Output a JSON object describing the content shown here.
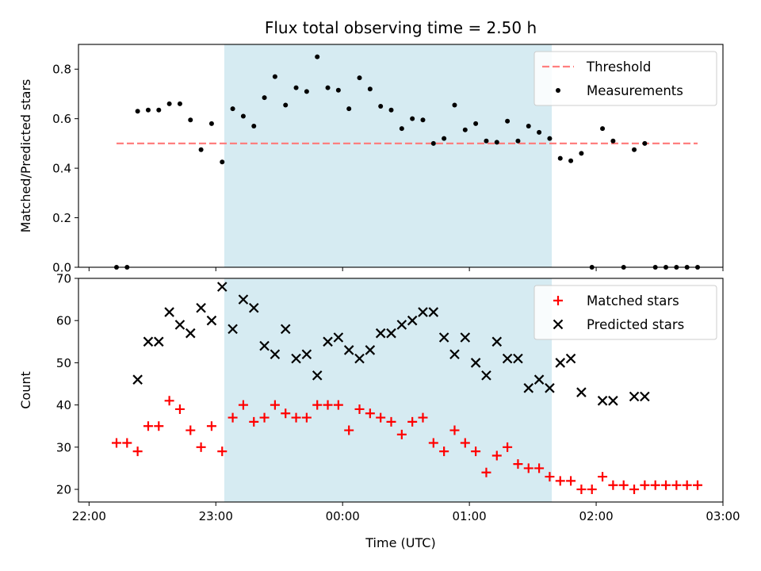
{
  "chart_data": [
    {
      "type": "scatter",
      "title": "Flux total observing time = 2.50 h",
      "ylabel": "Matched/Predicted stars",
      "ylim": [
        0,
        0.9
      ],
      "yticks": [
        0.0,
        0.2,
        0.4,
        0.6,
        0.8
      ],
      "ytick_labels": [
        "0.0",
        "0.2",
        "0.4",
        "0.6",
        "0.8"
      ],
      "xlim": [
        "21:55",
        "03:00"
      ],
      "shaded_span": [
        "23:04",
        "01:39"
      ],
      "threshold": {
        "name": "Threshold",
        "value": 0.5,
        "x_range": [
          "22:13",
          "02:48"
        ],
        "color": "#ff7f7f"
      },
      "legend_position": "top-right",
      "series": [
        {
          "name": "Measurements",
          "color": "#000000",
          "x": [
            "22:13",
            "22:18",
            "22:23",
            "22:28",
            "22:33",
            "22:38",
            "22:43",
            "22:48",
            "22:53",
            "22:58",
            "23:03",
            "23:08",
            "23:13",
            "23:18",
            "23:23",
            "23:28",
            "23:33",
            "23:38",
            "23:43",
            "23:48",
            "23:53",
            "23:58",
            "00:03",
            "00:08",
            "00:13",
            "00:18",
            "00:23",
            "00:28",
            "00:33",
            "00:38",
            "00:43",
            "00:48",
            "00:53",
            "00:58",
            "01:03",
            "01:08",
            "01:13",
            "01:18",
            "01:23",
            "01:28",
            "01:33",
            "01:38",
            "01:43",
            "01:48",
            "01:53",
            "01:58",
            "02:03",
            "02:08",
            "02:13",
            "02:18",
            "02:23",
            "02:28",
            "02:33",
            "02:38",
            "02:43",
            "02:48"
          ],
          "y": [
            0.0,
            0.0,
            0.63,
            0.635,
            0.635,
            0.66,
            0.66,
            0.595,
            0.475,
            0.58,
            0.425,
            0.64,
            0.61,
            0.57,
            0.685,
            0.77,
            0.655,
            0.725,
            0.71,
            0.85,
            0.725,
            0.715,
            0.64,
            0.765,
            0.72,
            0.65,
            0.635,
            0.56,
            0.6,
            0.595,
            0.5,
            0.52,
            0.655,
            0.555,
            0.58,
            0.51,
            0.505,
            0.59,
            0.51,
            0.57,
            0.545,
            0.52,
            0.44,
            0.43,
            0.46,
            0.0,
            0.56,
            0.51,
            0.0,
            0.475,
            0.5,
            0.0,
            0.0,
            0.0,
            0.0,
            0.0
          ]
        }
      ]
    },
    {
      "type": "scatter",
      "xlabel": "Time (UTC)",
      "ylabel": "Count",
      "ylim": [
        17,
        70
      ],
      "yticks": [
        20,
        30,
        40,
        50,
        60,
        70
      ],
      "ytick_labels": [
        "20",
        "30",
        "40",
        "50",
        "60",
        "70"
      ],
      "xlim": [
        "21:55",
        "03:00"
      ],
      "xticks": [
        "22:00",
        "23:00",
        "00:00",
        "01:00",
        "02:00",
        "03:00"
      ],
      "xtick_labels": [
        "22:00",
        "23:00",
        "00:00",
        "01:00",
        "02:00",
        "03:00"
      ],
      "shaded_span": [
        "23:04",
        "01:39"
      ],
      "legend_position": "top-right",
      "series": [
        {
          "name": "Matched stars",
          "marker": "plus",
          "color": "#ff0000",
          "x": [
            "22:13",
            "22:18",
            "22:23",
            "22:28",
            "22:33",
            "22:38",
            "22:43",
            "22:48",
            "22:53",
            "22:58",
            "23:03",
            "23:08",
            "23:13",
            "23:18",
            "23:23",
            "23:28",
            "23:33",
            "23:38",
            "23:43",
            "23:48",
            "23:53",
            "23:58",
            "00:03",
            "00:08",
            "00:13",
            "00:18",
            "00:23",
            "00:28",
            "00:33",
            "00:38",
            "00:43",
            "00:48",
            "00:53",
            "00:58",
            "01:03",
            "01:08",
            "01:13",
            "01:18",
            "01:23",
            "01:28",
            "01:33",
            "01:38",
            "01:43",
            "01:48",
            "01:53",
            "01:58",
            "02:03",
            "02:08",
            "02:13",
            "02:18",
            "02:23",
            "02:28",
            "02:33",
            "02:38",
            "02:43",
            "02:48"
          ],
          "y": [
            31,
            31,
            29,
            35,
            35,
            41,
            39,
            34,
            30,
            35,
            29,
            37,
            40,
            36,
            37,
            40,
            38,
            37,
            37,
            40,
            40,
            40,
            34,
            39,
            38,
            37,
            36,
            33,
            36,
            37,
            31,
            29,
            34,
            31,
            29,
            24,
            28,
            30,
            26,
            25,
            25,
            23,
            22,
            22,
            20,
            20,
            23,
            21,
            21,
            20,
            21,
            21,
            21,
            21,
            21,
            21
          ]
        },
        {
          "name": "Predicted stars",
          "marker": "x",
          "color": "#000000",
          "x": [
            "22:23",
            "22:28",
            "22:33",
            "22:38",
            "22:43",
            "22:48",
            "22:53",
            "22:58",
            "23:03",
            "23:08",
            "23:13",
            "23:18",
            "23:23",
            "23:28",
            "23:33",
            "23:38",
            "23:43",
            "23:48",
            "23:53",
            "23:58",
            "00:03",
            "00:08",
            "00:13",
            "00:18",
            "00:23",
            "00:28",
            "00:33",
            "00:38",
            "00:43",
            "00:48",
            "00:53",
            "00:58",
            "01:03",
            "01:08",
            "01:13",
            "01:18",
            "01:23",
            "01:28",
            "01:33",
            "01:38",
            "01:43",
            "01:48",
            "01:53",
            "02:03",
            "02:08",
            "02:18",
            "02:23"
          ],
          "y": [
            46,
            55,
            55,
            62,
            59,
            57,
            63,
            60,
            68,
            58,
            65,
            63,
            54,
            52,
            58,
            51,
            52,
            47,
            55,
            56,
            53,
            51,
            53,
            57,
            57,
            59,
            60,
            62,
            62,
            56,
            52,
            56,
            50,
            47,
            55,
            51,
            51,
            44,
            46,
            44,
            50,
            51,
            43,
            41,
            41,
            42,
            42
          ]
        }
      ]
    }
  ]
}
